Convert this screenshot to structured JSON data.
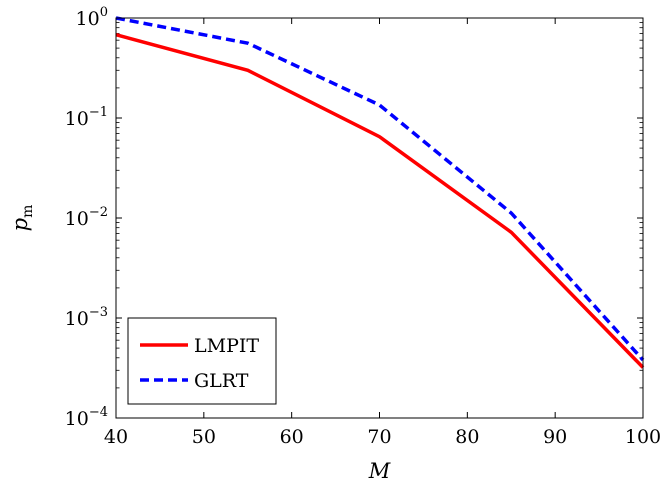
{
  "chart_data": {
    "type": "line",
    "xlabel": "M",
    "ylabel": "p_m",
    "ylabel_main": "p",
    "ylabel_sub": "m",
    "xlim": [
      40,
      100
    ],
    "ylim": [
      0.0001,
      1
    ],
    "yscale": "log",
    "x_ticks": [
      40,
      50,
      60,
      70,
      80,
      90,
      100
    ],
    "y_ticks": [
      {
        "value": 1,
        "base": "10",
        "exp": "0"
      },
      {
        "value": 0.1,
        "base": "10",
        "exp": "−1"
      },
      {
        "value": 0.01,
        "base": "10",
        "exp": "−2"
      },
      {
        "value": 0.001,
        "base": "10",
        "exp": "−3"
      },
      {
        "value": 0.0001,
        "base": "10",
        "exp": "−4"
      }
    ],
    "grid": false,
    "legend_position": "bottom-left",
    "series": [
      {
        "name": "LMPIT",
        "color": "#ff0000",
        "style": "solid",
        "x": [
          40,
          55,
          70,
          85,
          100
        ],
        "y": [
          0.68,
          0.3,
          0.065,
          0.0072,
          0.00032
        ]
      },
      {
        "name": "GLRT",
        "color": "#0000ff",
        "style": "dashed",
        "x": [
          40,
          55,
          70,
          85,
          100
        ],
        "y": [
          1.0,
          0.56,
          0.135,
          0.0112,
          0.00038
        ]
      }
    ]
  }
}
